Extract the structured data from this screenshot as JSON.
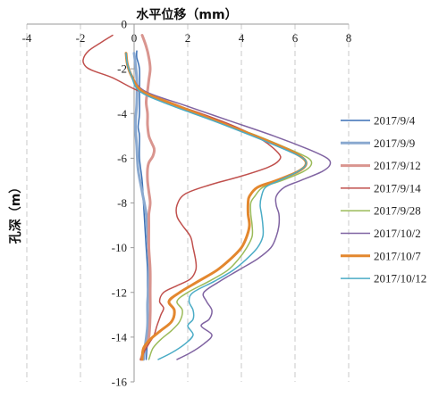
{
  "chart_data": {
    "type": "line",
    "title": "水平位移（mm）",
    "xlabel": "水平位移（mm）",
    "ylabel": "孔深（m）",
    "xlim": [
      -4,
      8
    ],
    "ylim": [
      -16,
      0
    ],
    "x_ticks": [
      "-4",
      "-2",
      "0",
      "2",
      "4",
      "6",
      "8"
    ],
    "y_ticks": [
      "0",
      "-2",
      "-4",
      "-6",
      "-8",
      "-10",
      "-12",
      "-14",
      "-16"
    ],
    "grid": "vertical-dashed",
    "legend_position": "right",
    "series": [
      {
        "name": "2017/9/4",
        "color": "#3a6fb5",
        "width": 1.5,
        "points": [
          [
            0.1,
            -1.2
          ],
          [
            0.1,
            -1.5
          ],
          [
            0.2,
            -2.0
          ],
          [
            0.2,
            -3.0
          ],
          [
            0.2,
            -4.0
          ],
          [
            0.15,
            -4.6
          ],
          [
            0.2,
            -5.0
          ],
          [
            0.2,
            -6.0
          ],
          [
            0.3,
            -7.0
          ],
          [
            0.35,
            -8.0
          ],
          [
            0.4,
            -9.0
          ],
          [
            0.45,
            -10.0
          ],
          [
            0.5,
            -11.0
          ],
          [
            0.5,
            -12.0
          ],
          [
            0.5,
            -13.0
          ],
          [
            0.5,
            -14.0
          ],
          [
            0.45,
            -15.0
          ]
        ]
      },
      {
        "name": "2017/9/9",
        "color": "#8aa9d0",
        "width": 3,
        "points": [
          [
            0.0,
            -1.3
          ],
          [
            0.05,
            -1.8
          ],
          [
            0.1,
            -2.5
          ],
          [
            0.1,
            -3.5
          ],
          [
            0.05,
            -4.5
          ],
          [
            0.1,
            -5.5
          ],
          [
            0.15,
            -6.5
          ],
          [
            0.3,
            -7.5
          ],
          [
            0.45,
            -8.5
          ],
          [
            0.5,
            -9.5
          ],
          [
            0.55,
            -10.5
          ],
          [
            0.55,
            -11.5
          ],
          [
            0.5,
            -12.5
          ],
          [
            0.5,
            -13.5
          ],
          [
            0.4,
            -14.5
          ],
          [
            0.35,
            -15.0
          ]
        ]
      },
      {
        "name": "2017/9/12",
        "color": "#d9958f",
        "width": 3,
        "points": [
          [
            0.3,
            -0.5
          ],
          [
            0.45,
            -1.0
          ],
          [
            0.55,
            -1.5
          ],
          [
            0.6,
            -2.0
          ],
          [
            0.55,
            -2.5
          ],
          [
            0.5,
            -3.0
          ],
          [
            0.45,
            -3.5
          ],
          [
            0.5,
            -4.0
          ],
          [
            0.5,
            -4.5
          ],
          [
            0.55,
            -5.0
          ],
          [
            0.65,
            -5.3
          ],
          [
            0.75,
            -5.6
          ],
          [
            0.7,
            -5.9
          ],
          [
            0.55,
            -6.2
          ],
          [
            0.5,
            -6.5
          ],
          [
            0.5,
            -7.0
          ],
          [
            0.55,
            -7.5
          ],
          [
            0.6,
            -8.0
          ],
          [
            0.55,
            -8.5
          ],
          [
            0.55,
            -9.0
          ],
          [
            0.55,
            -10.0
          ],
          [
            0.6,
            -11.0
          ],
          [
            0.6,
            -12.0
          ],
          [
            0.6,
            -13.0
          ],
          [
            0.55,
            -14.0
          ],
          [
            0.4,
            -14.5
          ],
          [
            0.25,
            -15.0
          ]
        ]
      },
      {
        "name": "2017/9/14",
        "color": "#c0504d",
        "width": 1.5,
        "points": [
          [
            -0.8,
            -0.5
          ],
          [
            -1.2,
            -0.8
          ],
          [
            -1.7,
            -1.2
          ],
          [
            -1.9,
            -1.6
          ],
          [
            -1.8,
            -1.9
          ],
          [
            -1.5,
            -2.1
          ],
          [
            -0.8,
            -2.4
          ],
          [
            0.0,
            -2.9
          ],
          [
            1.0,
            -3.4
          ],
          [
            2.5,
            -4.0
          ],
          [
            3.8,
            -4.6
          ],
          [
            4.8,
            -5.2
          ],
          [
            5.4,
            -5.8
          ],
          [
            5.4,
            -6.1
          ],
          [
            5.0,
            -6.4
          ],
          [
            4.0,
            -6.8
          ],
          [
            2.8,
            -7.2
          ],
          [
            1.9,
            -7.6
          ],
          [
            1.6,
            -8.1
          ],
          [
            1.6,
            -8.6
          ],
          [
            1.8,
            -9.0
          ],
          [
            2.1,
            -9.5
          ],
          [
            2.2,
            -10.0
          ],
          [
            2.3,
            -10.6
          ],
          [
            2.3,
            -11.0
          ],
          [
            2.1,
            -11.4
          ],
          [
            1.6,
            -11.7
          ],
          [
            1.1,
            -12.0
          ],
          [
            0.95,
            -12.4
          ],
          [
            1.1,
            -12.7
          ],
          [
            1.0,
            -13.0
          ],
          [
            0.85,
            -13.5
          ],
          [
            0.75,
            -13.9
          ],
          [
            0.6,
            -14.2
          ],
          [
            0.4,
            -14.6
          ],
          [
            0.25,
            -15.0
          ]
        ]
      },
      {
        "name": "2017/9/28",
        "color": "#9bbb59",
        "width": 1.5,
        "points": [
          [
            -0.3,
            -1.3
          ],
          [
            -0.25,
            -1.8
          ],
          [
            -0.1,
            -2.3
          ],
          [
            0.3,
            -3.0
          ],
          [
            1.5,
            -3.6
          ],
          [
            3.0,
            -4.3
          ],
          [
            4.6,
            -5.0
          ],
          [
            5.8,
            -5.6
          ],
          [
            6.5,
            -6.0
          ],
          [
            6.6,
            -6.3
          ],
          [
            6.3,
            -6.6
          ],
          [
            5.5,
            -7.0
          ],
          [
            4.8,
            -7.3
          ],
          [
            4.5,
            -7.7
          ],
          [
            4.35,
            -8.0
          ],
          [
            4.35,
            -8.5
          ],
          [
            4.4,
            -9.0
          ],
          [
            4.4,
            -9.5
          ],
          [
            4.2,
            -10.0
          ],
          [
            3.9,
            -10.5
          ],
          [
            3.5,
            -11.0
          ],
          [
            2.8,
            -11.5
          ],
          [
            2.0,
            -12.0
          ],
          [
            1.6,
            -12.4
          ],
          [
            1.8,
            -12.8
          ],
          [
            1.7,
            -13.3
          ],
          [
            1.4,
            -13.7
          ],
          [
            1.0,
            -14.1
          ],
          [
            0.7,
            -14.5
          ],
          [
            0.55,
            -15.0
          ]
        ]
      },
      {
        "name": "2017/10/2",
        "color": "#8064a2",
        "width": 1.5,
        "points": [
          [
            -0.3,
            -1.3
          ],
          [
            -0.25,
            -1.8
          ],
          [
            -0.1,
            -2.3
          ],
          [
            0.4,
            -3.0
          ],
          [
            1.8,
            -3.6
          ],
          [
            3.5,
            -4.3
          ],
          [
            5.2,
            -5.0
          ],
          [
            6.5,
            -5.6
          ],
          [
            7.2,
            -6.0
          ],
          [
            7.3,
            -6.3
          ],
          [
            7.0,
            -6.6
          ],
          [
            6.2,
            -7.0
          ],
          [
            5.6,
            -7.3
          ],
          [
            5.3,
            -7.7
          ],
          [
            5.3,
            -8.1
          ],
          [
            5.4,
            -8.5
          ],
          [
            5.4,
            -9.0
          ],
          [
            5.3,
            -9.5
          ],
          [
            5.1,
            -10.0
          ],
          [
            4.6,
            -10.5
          ],
          [
            3.9,
            -11.0
          ],
          [
            3.2,
            -11.5
          ],
          [
            2.6,
            -12.0
          ],
          [
            2.7,
            -12.4
          ],
          [
            2.9,
            -12.8
          ],
          [
            2.8,
            -13.2
          ],
          [
            2.5,
            -13.5
          ],
          [
            2.9,
            -13.9
          ],
          [
            2.6,
            -14.3
          ],
          [
            2.1,
            -14.7
          ],
          [
            1.6,
            -15.0
          ]
        ]
      },
      {
        "name": "2017/10/7",
        "color": "#e3872e",
        "width": 3,
        "points": [
          [
            -0.3,
            -1.3
          ],
          [
            -0.25,
            -1.8
          ],
          [
            -0.1,
            -2.3
          ],
          [
            0.3,
            -3.0
          ],
          [
            1.5,
            -3.6
          ],
          [
            3.0,
            -4.3
          ],
          [
            4.5,
            -5.0
          ],
          [
            5.7,
            -5.6
          ],
          [
            6.3,
            -6.0
          ],
          [
            6.4,
            -6.3
          ],
          [
            6.1,
            -6.6
          ],
          [
            5.3,
            -7.0
          ],
          [
            4.6,
            -7.3
          ],
          [
            4.3,
            -7.7
          ],
          [
            4.25,
            -8.0
          ],
          [
            4.25,
            -8.5
          ],
          [
            4.3,
            -9.0
          ],
          [
            4.2,
            -9.5
          ],
          [
            4.0,
            -10.0
          ],
          [
            3.6,
            -10.5
          ],
          [
            3.1,
            -11.0
          ],
          [
            2.4,
            -11.5
          ],
          [
            1.7,
            -12.0
          ],
          [
            1.3,
            -12.4
          ],
          [
            1.5,
            -12.8
          ],
          [
            1.4,
            -13.3
          ],
          [
            1.0,
            -13.7
          ],
          [
            0.6,
            -14.1
          ],
          [
            0.35,
            -14.5
          ],
          [
            0.3,
            -15.0
          ]
        ]
      },
      {
        "name": "2017/10/12",
        "color": "#4bacc6",
        "width": 1.5,
        "points": [
          [
            -0.3,
            -1.3
          ],
          [
            -0.25,
            -1.8
          ],
          [
            -0.1,
            -2.3
          ],
          [
            0.2,
            -3.0
          ],
          [
            1.3,
            -3.6
          ],
          [
            2.9,
            -4.3
          ],
          [
            4.4,
            -5.0
          ],
          [
            5.6,
            -5.6
          ],
          [
            6.3,
            -6.0
          ],
          [
            6.4,
            -6.3
          ],
          [
            6.1,
            -6.6
          ],
          [
            5.4,
            -7.0
          ],
          [
            4.9,
            -7.3
          ],
          [
            4.75,
            -7.7
          ],
          [
            4.7,
            -8.1
          ],
          [
            4.75,
            -8.5
          ],
          [
            4.8,
            -9.0
          ],
          [
            4.8,
            -9.5
          ],
          [
            4.6,
            -10.0
          ],
          [
            4.2,
            -10.5
          ],
          [
            3.7,
            -11.0
          ],
          [
            3.0,
            -11.5
          ],
          [
            2.2,
            -12.0
          ],
          [
            2.05,
            -12.4
          ],
          [
            2.2,
            -12.8
          ],
          [
            2.2,
            -13.2
          ],
          [
            2.0,
            -13.5
          ],
          [
            2.2,
            -13.9
          ],
          [
            1.9,
            -14.3
          ],
          [
            1.4,
            -14.7
          ],
          [
            0.9,
            -15.0
          ]
        ]
      }
    ]
  }
}
